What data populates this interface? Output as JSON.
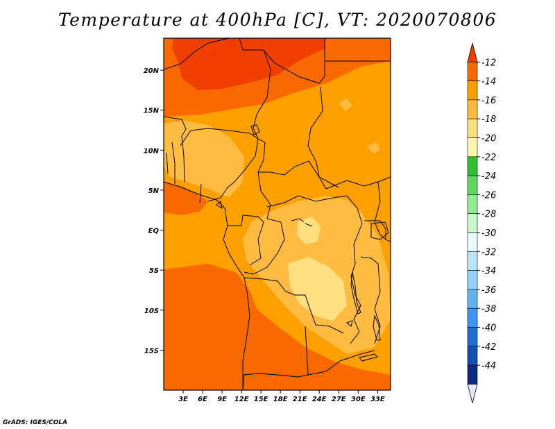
{
  "title": "Temperature at 400hPa [C], VT: 2020070806",
  "credit": "GrADS: IGES/COLA",
  "map": {
    "variable": "Temperature",
    "level": "400hPa",
    "units": "C",
    "valid_time": "2020070806",
    "lon_range": [
      0,
      35
    ],
    "lat_range": [
      -20,
      24
    ],
    "x_ticks": [
      {
        "value": 3,
        "label": "3E"
      },
      {
        "value": 6,
        "label": "6E"
      },
      {
        "value": 9,
        "label": "9E"
      },
      {
        "value": 12,
        "label": "12E"
      },
      {
        "value": 15,
        "label": "15E"
      },
      {
        "value": 18,
        "label": "18E"
      },
      {
        "value": 21,
        "label": "21E"
      },
      {
        "value": 24,
        "label": "24E"
      },
      {
        "value": 27,
        "label": "27E"
      },
      {
        "value": 30,
        "label": "30E"
      },
      {
        "value": 33,
        "label": "33E"
      }
    ],
    "y_ticks": [
      {
        "value": 20,
        "label": "20N"
      },
      {
        "value": 15,
        "label": "15N"
      },
      {
        "value": 10,
        "label": "10N"
      },
      {
        "value": 5,
        "label": "5N"
      },
      {
        "value": 0,
        "label": "EQ"
      },
      {
        "value": -5,
        "label": "5S"
      },
      {
        "value": -10,
        "label": "10S"
      },
      {
        "value": -15,
        "label": "15S"
      }
    ]
  },
  "colorbar": {
    "labels": [
      "-12",
      "-14",
      "-16",
      "-18",
      "-20",
      "-22",
      "-24",
      "-26",
      "-28",
      "-30",
      "-32",
      "-34",
      "-36",
      "-38",
      "-40",
      "-42",
      "-44"
    ],
    "colors": [
      "#f04000",
      "#f86a00",
      "#fca000",
      "#ffbc40",
      "#ffe080",
      "#fff8b0",
      "#30c030",
      "#60d860",
      "#90ee90",
      "#c8fac8",
      "#e8fcff",
      "#bce4fa",
      "#96d2fa",
      "#64b4f0",
      "#3c96f0",
      "#1e6ed2",
      "#1450b4",
      "#0a2882",
      "#e6e6fa"
    ]
  },
  "regions": {
    "background_color": "#fca000",
    "patches": [
      {
        "name": "warm-north",
        "color": "#f86a00"
      },
      {
        "name": "warmest-north",
        "color": "#f04000"
      },
      {
        "name": "warm-northeast",
        "color": "#f86a00"
      },
      {
        "name": "warm-south",
        "color": "#f86a00"
      },
      {
        "name": "warm-west",
        "color": "#f86a00"
      },
      {
        "name": "cool-west-africa",
        "color": "#ffbc40"
      },
      {
        "name": "cool-central-africa",
        "color": "#ffbc40"
      },
      {
        "name": "coolest-central",
        "color": "#ffe080"
      },
      {
        "name": "coolest-east",
        "color": "#ffe080"
      },
      {
        "name": "cool-north-pockets",
        "color": "#ffbc40"
      }
    ]
  }
}
